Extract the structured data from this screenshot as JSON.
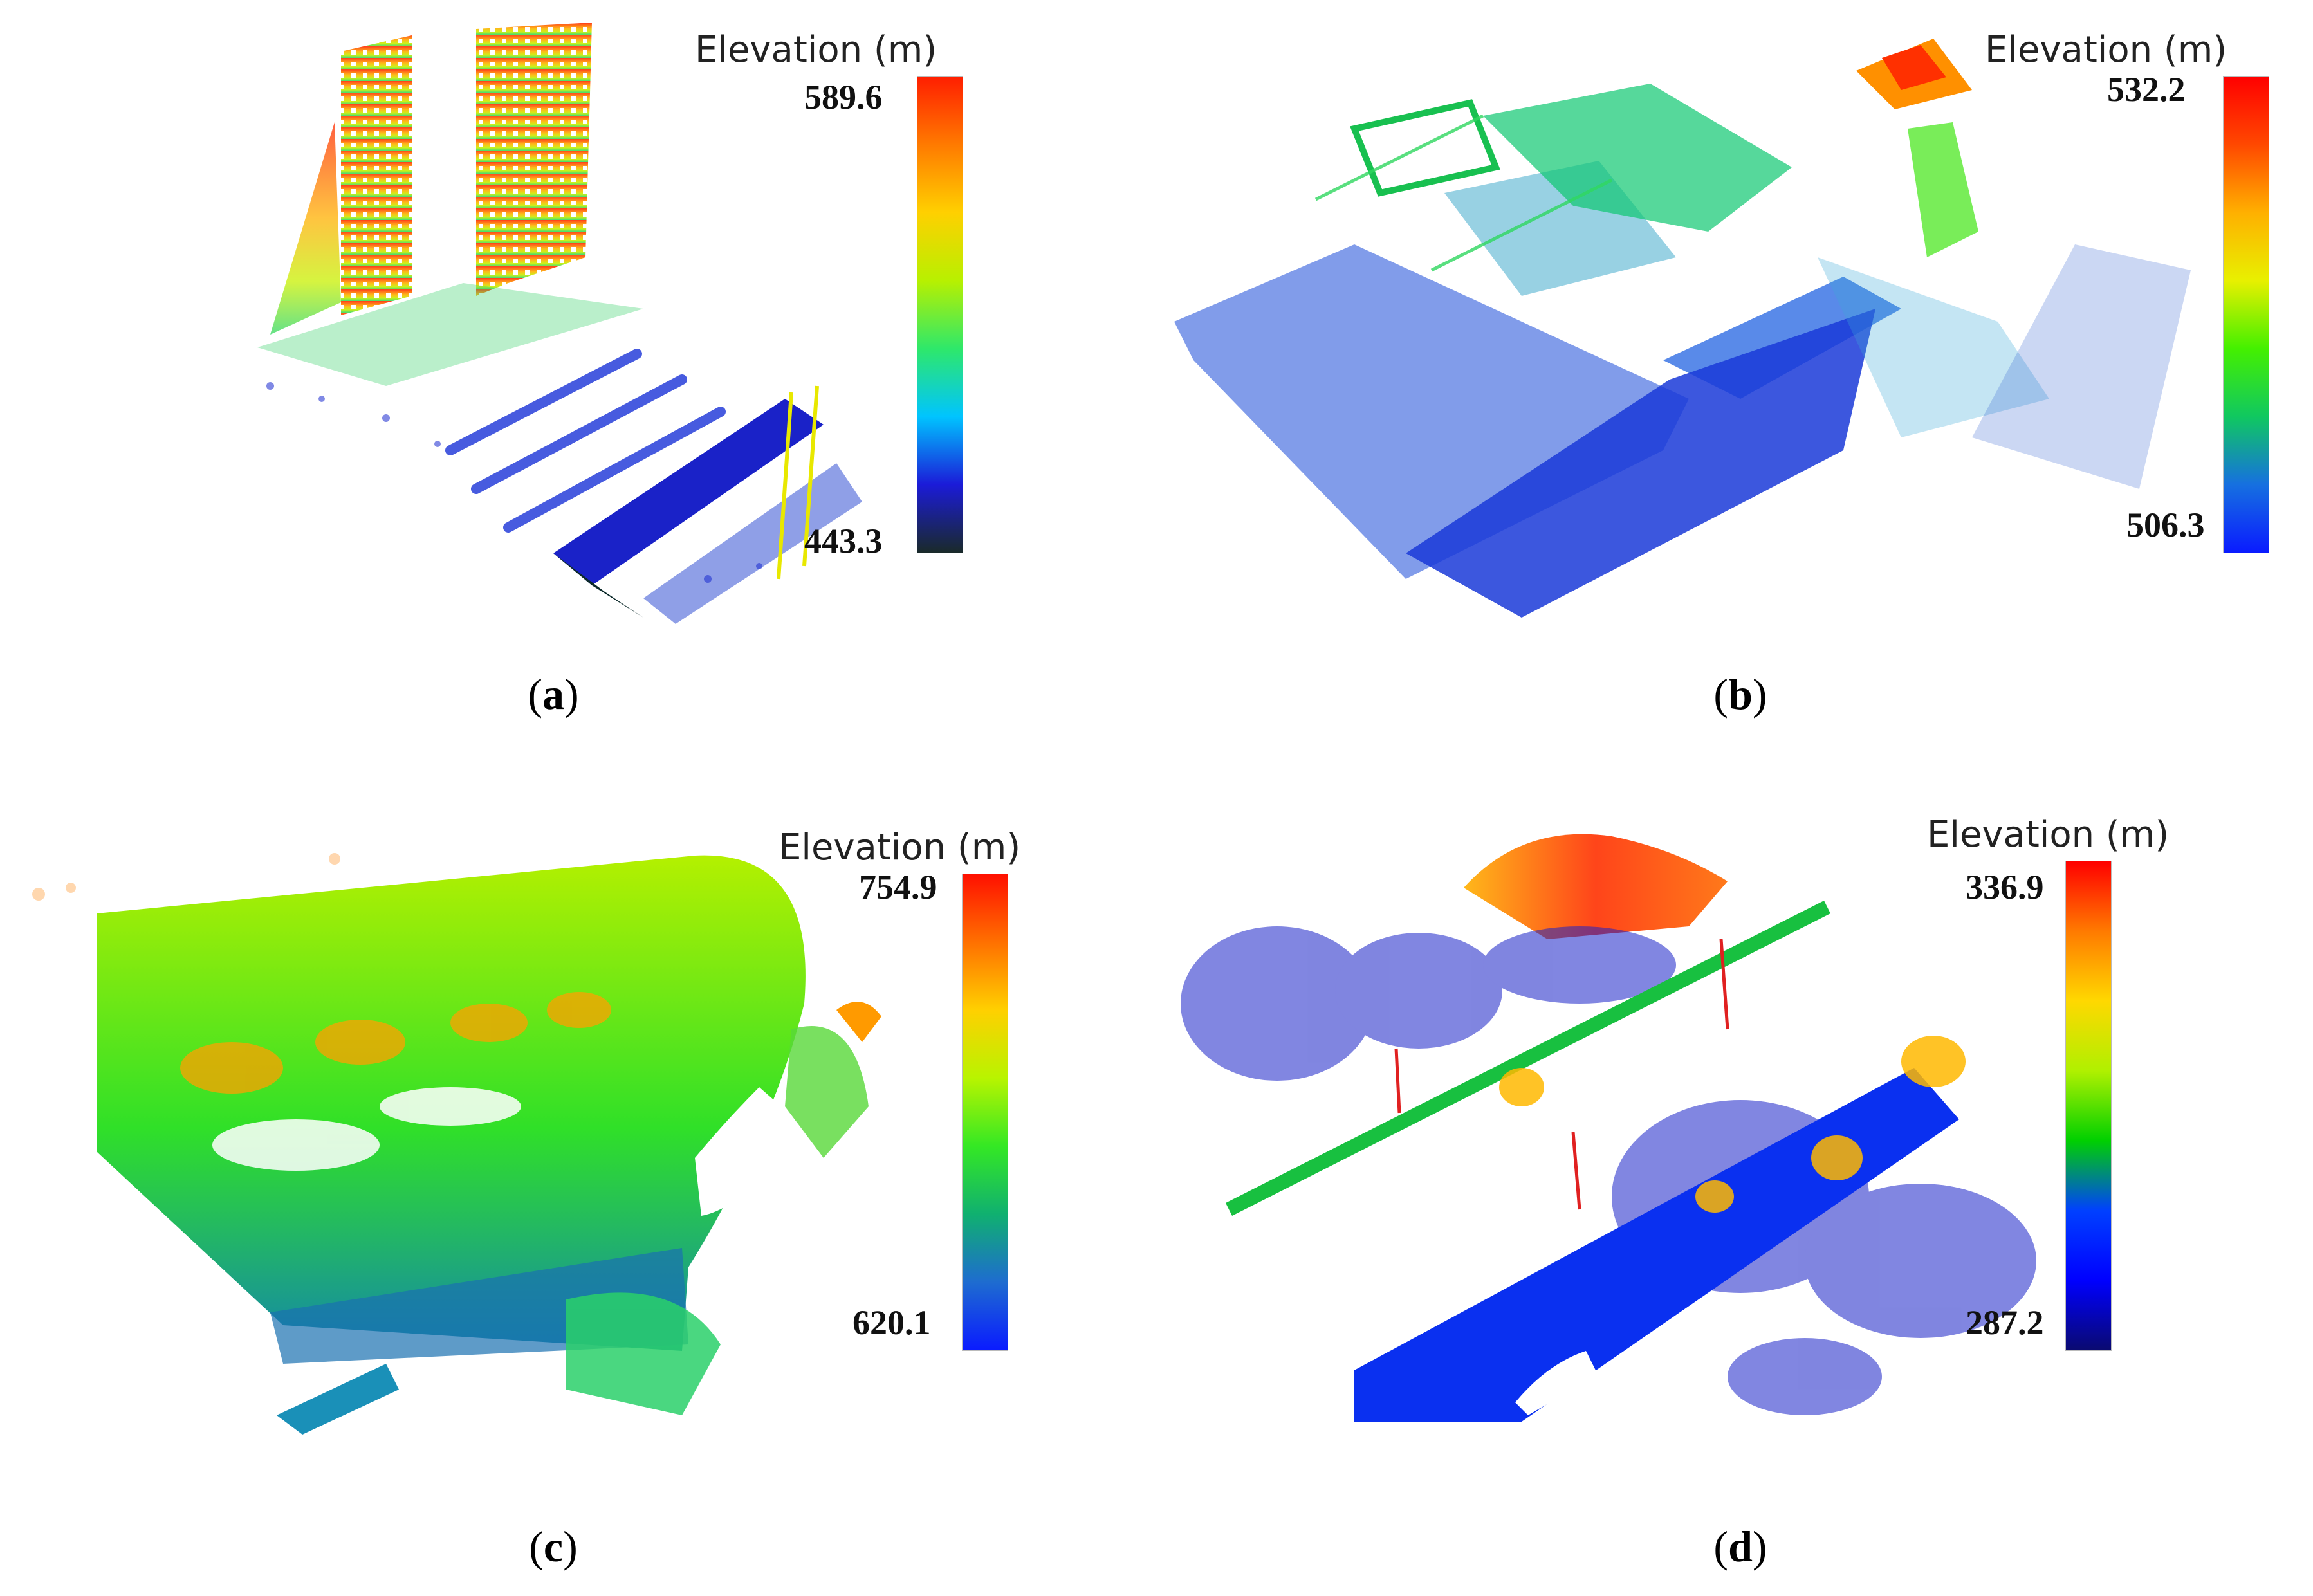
{
  "figure": {
    "panels": [
      {
        "id": "a",
        "legend_title": "Elevation (m)",
        "max": "589.6",
        "min": "443.3",
        "caption_letter": "a",
        "colormap": [
          "#1a2a2a",
          "#1b1bd8",
          "#00c4ff",
          "#2ee86a",
          "#b8f000",
          "#ffd000",
          "#ff7a00",
          "#ff1e00"
        ]
      },
      {
        "id": "b",
        "legend_title": "Elevation (m)",
        "max": "532.2",
        "min": "506.3",
        "caption_letter": "b",
        "colormap": [
          "#0a1bff",
          "#1670e0",
          "#10c860",
          "#44f000",
          "#e8f000",
          "#ffb000",
          "#ff4800",
          "#ff0000"
        ]
      },
      {
        "id": "c",
        "legend_title": "Elevation (m)",
        "max": "754.9",
        "min": "620.1",
        "caption_letter": "c",
        "colormap": [
          "#0a1bff",
          "#1e6cd0",
          "#10b070",
          "#34e824",
          "#b8f400",
          "#ffd000",
          "#ff7000",
          "#ff1000"
        ]
      },
      {
        "id": "d",
        "legend_title": "Elevation (m)",
        "max": "336.9",
        "min": "287.2",
        "caption_letter": "d",
        "colormap": [
          "#0a0a70",
          "#0000ff",
          "#0040ff",
          "#00d000",
          "#b0f000",
          "#ffd800",
          "#ff7a00",
          "#ff0000"
        ]
      }
    ]
  }
}
